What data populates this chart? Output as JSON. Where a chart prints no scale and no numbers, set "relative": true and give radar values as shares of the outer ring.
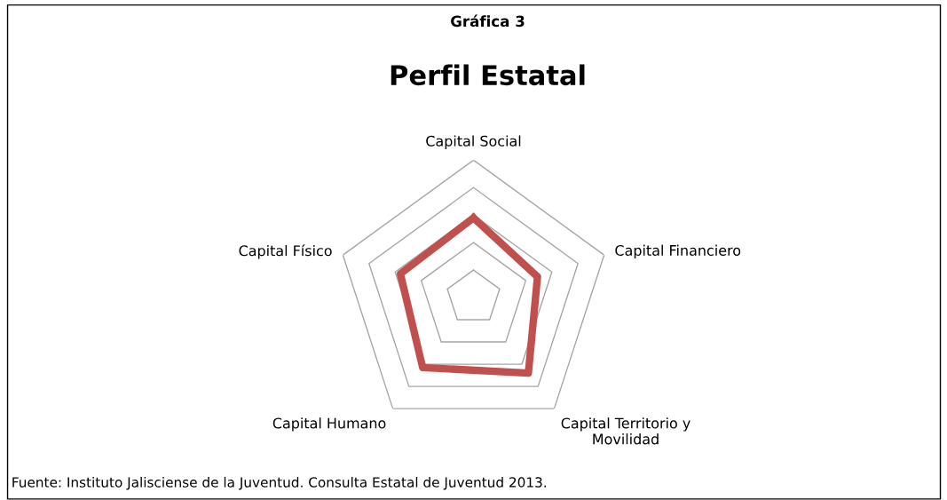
{
  "chart_data": {
    "type": "radar",
    "title": "Perfil Estatal",
    "subtitle": "Gráfica 3",
    "relative": true,
    "grid": true,
    "marker": "none",
    "categories": [
      "Capital Social",
      "Capital Financiero",
      "Capital Territorio y\nMovilidad",
      "Capital Humano",
      "Capital Físico"
    ],
    "series": [
      {
        "color": "#c0504d",
        "values": [
          0.58,
          0.49,
          0.68,
          0.63,
          0.56
        ]
      }
    ],
    "annotations": [
      "Fuente: Instituto Jalisciense de la Juventud. Consulta Estatal de Juventud 2013."
    ]
  }
}
